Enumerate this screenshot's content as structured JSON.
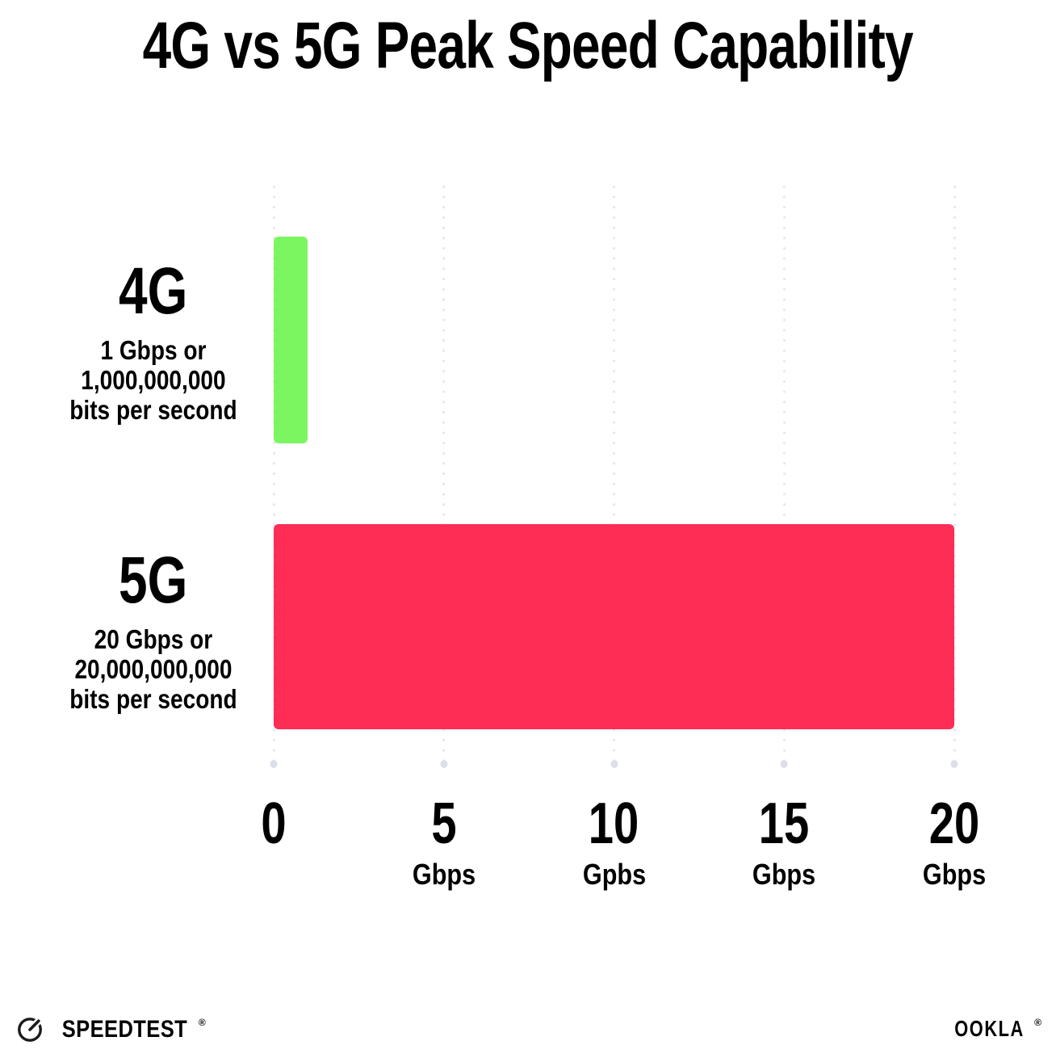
{
  "title": "4G vs 5G Peak Speed Capability",
  "chart_data": {
    "type": "bar",
    "orientation": "horizontal",
    "title": "4G vs 5G Peak Speed Capability",
    "categories": [
      "4G",
      "5G"
    ],
    "values": [
      1,
      20
    ],
    "xlabel": "Gbps",
    "xlim": [
      0,
      20
    ],
    "grid": "dotted-vertical",
    "legend": "none",
    "row_labels": [
      {
        "name": "4G",
        "sublines": [
          "1 Gbps or",
          "1,000,000,000",
          "bits per second"
        ]
      },
      {
        "name": "5G",
        "sublines": [
          "20 Gbps or",
          "20,000,000,000",
          "bits per second"
        ]
      }
    ],
    "x_ticks": [
      {
        "value": "0",
        "unit": ""
      },
      {
        "value": "5",
        "unit": "Gbps"
      },
      {
        "value": "10",
        "unit": "Gpbs"
      },
      {
        "value": "15",
        "unit": "Gbps"
      },
      {
        "value": "20",
        "unit": "Gbps"
      }
    ]
  },
  "colors": {
    "bar_4g": "#7BF660",
    "bar_5g": "#FD2D55",
    "gridline": "#E3E4EE",
    "text": "#000000"
  },
  "footer": {
    "speedtest_label": "SPEEDTEST",
    "speedtest_mark": "®",
    "ookla_label": "OOKLA",
    "ookla_mark": "®"
  }
}
